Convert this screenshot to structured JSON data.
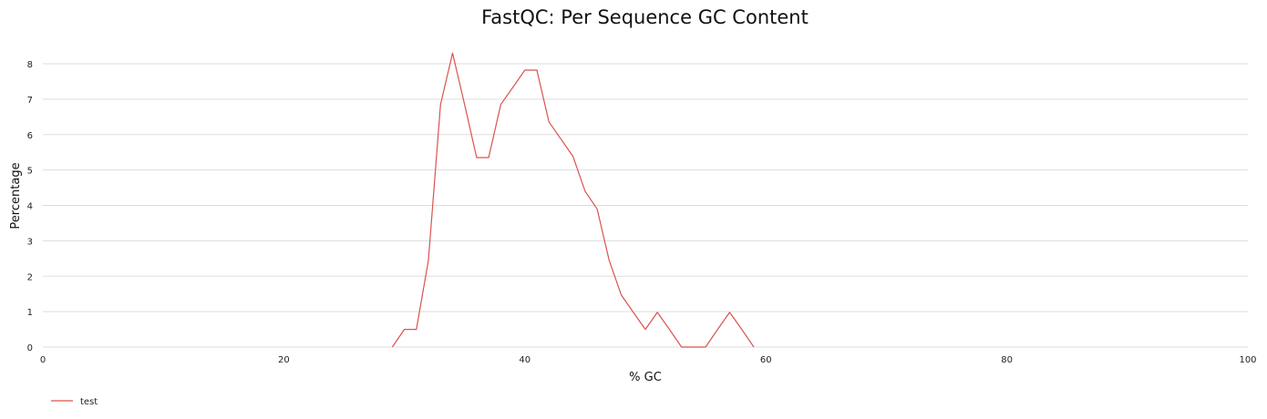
{
  "chart_data": {
    "type": "line",
    "title": "FastQC: Per Sequence GC Content",
    "xlabel": "% GC",
    "ylabel": "Percentage",
    "xlim": [
      0,
      100
    ],
    "ylim": [
      0,
      8
    ],
    "x_ticks": [
      0,
      20,
      40,
      60,
      80,
      100
    ],
    "y_ticks": [
      0,
      1,
      2,
      3,
      4,
      5,
      6,
      7,
      8
    ],
    "grid": "horizontal",
    "legend_position": "bottom-left",
    "series": [
      {
        "name": "test",
        "color": "#d9534f",
        "x": [
          29,
          30,
          31,
          32,
          33,
          34,
          35,
          36,
          37,
          38,
          39,
          40,
          41,
          42,
          43,
          44,
          45,
          46,
          47,
          48,
          49,
          50,
          51,
          52,
          53,
          54,
          55,
          56,
          57,
          58,
          59
        ],
        "y": [
          0,
          0.5,
          0.5,
          2.45,
          6.85,
          8.3,
          6.85,
          5.35,
          5.35,
          6.85,
          7.33,
          7.82,
          7.82,
          6.36,
          5.87,
          5.38,
          4.4,
          3.9,
          2.45,
          1.47,
          0.98,
          0.5,
          0.98,
          0.5,
          0,
          0,
          0,
          0.5,
          0.98,
          0.5,
          0
        ]
      }
    ]
  }
}
